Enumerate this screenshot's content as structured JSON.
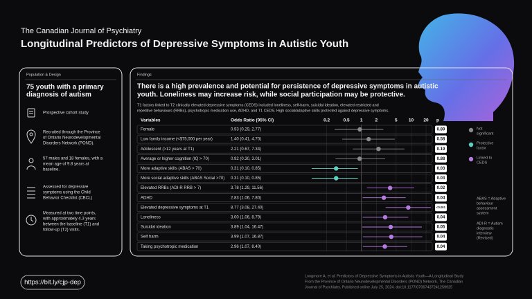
{
  "header": {
    "journal": "The Canadian Journal of Psychiatry",
    "title": "Longitudinal Predictors of Depressive Symptoms in Autistic Youth"
  },
  "population": {
    "label": "Population & Design",
    "headline": [
      "75 youth with a primary",
      "diagnosis of autism"
    ],
    "items": [
      [
        "Prospective cohort study"
      ],
      [
        "Recruited through the Province",
        "of Ontario Neurodevelopmental",
        "Disorders Network (POND)."
      ],
      [
        "57 males and 18 females, with a",
        "mean age of 9.8 years at",
        "baseline."
      ],
      [
        "Assessed for depressive",
        "symptoms using the Child",
        "Behavior Checklist (CBCL)"
      ],
      [
        "Measured at two time points,",
        "with approximately 4.3 years",
        "between the baseline (T1) and",
        "follow-up (T2) visits."
      ]
    ]
  },
  "findings": {
    "label": "Findings",
    "summary": [
      "There is a high prevalence and potential for persistence of depressive symptoms in autistic",
      "youth. Loneliness may increase risk, while social participation may be protective."
    ],
    "detail": [
      "T1 factors linked to T2 clinically elevated depressive symptoms (CEDS) included loneliness, self-harm, suicidal ideation, elevated restricted and",
      "repetitive behaviours (RRBs), psychotropic medication use, ADHD, and T1 CEDS. High social/adaptive skills protected against depressive symptoms."
    ],
    "columns": {
      "variables": "Variables",
      "or": "Odds Ratio (95% CI)",
      "p": "p"
    },
    "xlim": [
      0.1,
      25
    ],
    "xticks": [
      0.2,
      0.5,
      1,
      2,
      5,
      10,
      20
    ],
    "log_scale": true,
    "rows": [
      {
        "variable": "Female",
        "ci_label": "0.93 (0.29, 2.77)",
        "or": 0.93,
        "lo": 0.29,
        "hi": 2.77,
        "p": "0.89",
        "color": "#8a8a8a"
      },
      {
        "variable": "Low family income (<$75,000 per year)",
        "ci_label": "1.40 (0.41, 4.70)",
        "or": 1.4,
        "lo": 0.41,
        "hi": 4.7,
        "p": "0.58",
        "color": "#8a8a8a"
      },
      {
        "variable": "Adolescent (>12 years at T1)",
        "ci_label": "2.21 (0.67, 7.34)",
        "or": 2.21,
        "lo": 0.67,
        "hi": 7.34,
        "p": "0.19",
        "color": "#8a8a8a"
      },
      {
        "variable": "Average or higher cognition (IQ > 70)",
        "ci_label": "0.92 (0.30, 3.01)",
        "or": 0.92,
        "lo": 0.3,
        "hi": 3.01,
        "p": "0.88",
        "color": "#8a8a8a"
      },
      {
        "variable": "More adaptive skills (ABAS > 70)",
        "ci_label": "0.31 (0.10, 0.85)",
        "or": 0.31,
        "lo": 0.1,
        "hi": 0.85,
        "p": "0.03",
        "color": "#5fd0c0"
      },
      {
        "variable": "More social adaptive skills (ABAS Social >70)",
        "ci_label": "0.31 (0.10, 0.85)",
        "or": 0.31,
        "lo": 0.1,
        "hi": 0.85,
        "p": "0.03",
        "color": "#5fd0c0"
      },
      {
        "variable": "Elevated RRBs (ADI-R RRB > 7)",
        "ci_label": "3.78 (1.29, 11.56)",
        "or": 3.78,
        "lo": 1.29,
        "hi": 11.56,
        "p": "0.02",
        "color": "#b57be0"
      },
      {
        "variable": "ADHD",
        "ci_label": "2.83 (1.06, 7.80)",
        "or": 2.83,
        "lo": 1.06,
        "hi": 7.8,
        "p": "0.04",
        "color": "#b57be0"
      },
      {
        "variable": "Elevated depressive symptoms at T1",
        "ci_label": "8.77 (3.08, 27.40)",
        "or": 8.77,
        "lo": 3.08,
        "hi": 27.4,
        "p": "<0.001",
        "color": "#b57be0"
      },
      {
        "variable": "Loneliness",
        "ci_label": "3.00 (1.06, 8.79)",
        "or": 3.0,
        "lo": 1.06,
        "hi": 8.79,
        "p": "0.04",
        "color": "#b57be0"
      },
      {
        "variable": "Suicidal ideation",
        "ci_label": "3.89 (1.04, 16.47)",
        "or": 3.89,
        "lo": 1.04,
        "hi": 16.47,
        "p": "0.05",
        "color": "#b57be0"
      },
      {
        "variable": "Self harm",
        "ci_label": "3.99 (1.07, 16.87)",
        "or": 3.99,
        "lo": 1.07,
        "hi": 16.87,
        "p": "0.04",
        "color": "#b57be0"
      },
      {
        "variable": "Taking psychotropic medication",
        "ci_label": "2.96 (1.07, 8.40)",
        "or": 2.96,
        "lo": 1.07,
        "hi": 8.4,
        "p": "0.04",
        "color": "#b57be0"
      }
    ],
    "legend": [
      {
        "name": [
          "Not",
          "significant"
        ],
        "color": "#8a8a8a"
      },
      {
        "name": [
          "Protective",
          "factor"
        ],
        "color": "#5fd0c0"
      },
      {
        "name": [
          "Linked to",
          "CEDS"
        ],
        "color": "#b57be0"
      }
    ],
    "notes": [
      [
        "ABAS = Adaptive",
        "behaviour",
        "assessment",
        "system"
      ],
      [
        "ADI-R = Autism",
        "diagnostic",
        "interview",
        "(Revised)"
      ]
    ]
  },
  "footer": {
    "link": "https://bit.ly/cjp-dep",
    "citation": [
      "Longmore A, et al. Predictors of Depressive Symptoms in Autistic Youth—A Longitudinal Study",
      "From the Province of Ontario Neurodevelopmental Disorders (POND) Network. The Canadian",
      "Journal of Psychiatry. Published online July 25, 2024. doi:10.1177/07067437241259925"
    ]
  }
}
